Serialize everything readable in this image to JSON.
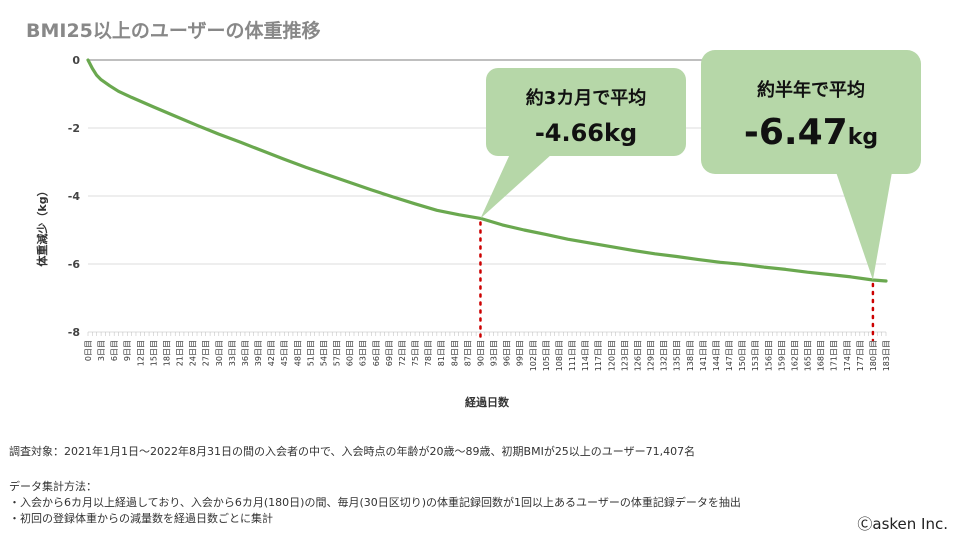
{
  "title": "BMI25以上のユーザーの体重推移",
  "chart_data": {
    "type": "line",
    "ylabel": "体重減少（kg）",
    "xlabel": "経過日数",
    "ylim": [
      -8,
      0
    ],
    "yticks": [
      0,
      -2,
      -4,
      -6,
      -8
    ],
    "grid": true,
    "line_color": "#6aa84f",
    "categories": [
      "0日目",
      "3日目",
      "6日目",
      "9日目",
      "12日目",
      "15日目",
      "18日目",
      "21日目",
      "24日目",
      "27日目",
      "30日目",
      "33日目",
      "36日目",
      "39日目",
      "42日目",
      "45日目",
      "48日目",
      "51日目",
      "54日目",
      "57日目",
      "60日目",
      "63日目",
      "66日目",
      "69日目",
      "72日目",
      "75日目",
      "78日目",
      "81日目",
      "84日目",
      "87日目",
      "90日目",
      "93日目",
      "96日目",
      "99日目",
      "102日目",
      "105日目",
      "108日目",
      "111日目",
      "114日目",
      "117日目",
      "120日目",
      "123日目",
      "126日目",
      "129日目",
      "132日目",
      "135日目",
      "138日目",
      "141日目",
      "144日目",
      "147日目",
      "150日目",
      "153日目",
      "156日目",
      "159日目",
      "162日目",
      "165日目",
      "168日目",
      "171日目",
      "174日目",
      "177日目",
      "180日目",
      "183日目"
    ],
    "series": [
      {
        "x": [
          0,
          1,
          2,
          3,
          5,
          7,
          10,
          15,
          20,
          25,
          30,
          35,
          40,
          45,
          50,
          55,
          60,
          65,
          70,
          75,
          80,
          85,
          90,
          95,
          100,
          105,
          110,
          115,
          120,
          125,
          130,
          135,
          140,
          145,
          150,
          155,
          160,
          165,
          170,
          175,
          180,
          183
        ],
        "values": [
          0,
          -0.25,
          -0.45,
          -0.58,
          -0.76,
          -0.92,
          -1.1,
          -1.38,
          -1.65,
          -1.92,
          -2.18,
          -2.42,
          -2.67,
          -2.92,
          -3.16,
          -3.38,
          -3.6,
          -3.82,
          -4.03,
          -4.23,
          -4.42,
          -4.55,
          -4.66,
          -4.85,
          -5.0,
          -5.13,
          -5.27,
          -5.38,
          -5.49,
          -5.6,
          -5.7,
          -5.78,
          -5.87,
          -5.95,
          -6.01,
          -6.09,
          -6.16,
          -6.24,
          -6.31,
          -6.38,
          -6.47,
          -6.5
        ]
      }
    ],
    "callouts": [
      {
        "line1": "約3カ月で平均",
        "line2": "-4.66kg",
        "x": 90,
        "y": -4.66
      },
      {
        "line1": "約半年で平均",
        "line2_big": "-6.47",
        "line2_unit": "kg",
        "x": 180,
        "y": -6.47
      }
    ],
    "callout_color": "#b6d7a8",
    "marker_color": "#cc0000"
  },
  "notes": {
    "target": "調査対象：2021年1月1日～2022年8月31日の間の入会者の中で、入会時点の年齢が20歳～89歳、初期BMIが25以上のユーザー71,407名",
    "method_title": "データ集計方法：",
    "method_1": "・入会から6カ月以上経過しており、入会から6カ月(180日)の間、毎月(30日区切り)の体重記録回数が1回以上あるユーザーの体重記録データを抽出",
    "method_2": "・初回の登録体重からの減量数を経過日数ごとに集計"
  },
  "credit": "Ⓒasken Inc."
}
